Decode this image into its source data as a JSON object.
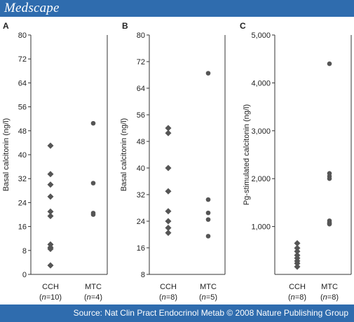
{
  "header": {
    "brand": "Medscape"
  },
  "footer": {
    "source": "Source: Nat Clin Pract Endocrinol Metab © 2008 Nature Publishing Group"
  },
  "colors": {
    "band": "#2f6cae",
    "marker": "#555555",
    "axis": "#333333"
  },
  "chart_data": [
    {
      "panel": "A",
      "type": "scatter",
      "ylabel": "Basal calcitonin (ng/l)",
      "ylim": [
        0,
        80
      ],
      "yticks": [
        0,
        8,
        16,
        24,
        32,
        40,
        48,
        56,
        64,
        72,
        80
      ],
      "yticks_labels": [
        "0",
        "8",
        "16",
        "24",
        "32",
        "40",
        "48",
        "56",
        "64",
        "72",
        "80"
      ],
      "categories": [
        {
          "name": "CCH",
          "n": "(n=10)",
          "n_prefix": "(",
          "n_italic": "n",
          "n_suffix": "=10)"
        },
        {
          "name": "MTC",
          "n": "(n=4)",
          "n_prefix": "(",
          "n_italic": "n",
          "n_suffix": "=4)"
        }
      ],
      "series": [
        {
          "name": "CCH",
          "marker": "diamond",
          "values": [
            43,
            33.5,
            30,
            26,
            21,
            19.5,
            10,
            9,
            8.5,
            3
          ]
        },
        {
          "name": "MTC",
          "marker": "circle",
          "values": [
            50.5,
            30.5,
            20.5,
            20
          ]
        }
      ]
    },
    {
      "panel": "B",
      "type": "scatter",
      "ylabel": "Basal calcitonin (ng/l)",
      "ylim": [
        8,
        80
      ],
      "yticks": [
        8,
        16,
        24,
        32,
        40,
        48,
        56,
        64,
        72,
        80
      ],
      "yticks_labels": [
        "8",
        "16",
        "24",
        "32",
        "40",
        "48",
        "56",
        "64",
        "72",
        "80"
      ],
      "categories": [
        {
          "name": "CCH",
          "n": "(n=8)",
          "n_prefix": "(",
          "n_italic": "n",
          "n_suffix": "=8)"
        },
        {
          "name": "MTC",
          "n": "(n=5)",
          "n_prefix": "(",
          "n_italic": "n",
          "n_suffix": "=5)"
        }
      ],
      "series": [
        {
          "name": "CCH",
          "marker": "diamond",
          "values": [
            52,
            50.5,
            40,
            33,
            27,
            24,
            22,
            20.5
          ]
        },
        {
          "name": "MTC",
          "marker": "circle",
          "values": [
            68.5,
            30.5,
            26.5,
            24.5,
            19.5
          ]
        }
      ]
    },
    {
      "panel": "C",
      "type": "scatter",
      "ylabel": "Pg-stimulated calcitonin (ng/l)",
      "ylim": [
        0,
        5000
      ],
      "yticks": [
        1000,
        2000,
        3000,
        4000,
        5000
      ],
      "yticks_labels": [
        "1,000",
        "2,000",
        "3,000",
        "4,000",
        "5,000"
      ],
      "categories": [
        {
          "name": "CCH",
          "n": "(n=8)",
          "n_prefix": "(",
          "n_italic": "n",
          "n_suffix": "=8)"
        },
        {
          "name": "MTC",
          "n": "(n=8)",
          "n_prefix": "(",
          "n_italic": "n",
          "n_suffix": "=8)"
        }
      ],
      "series": [
        {
          "name": "CCH",
          "marker": "diamond",
          "values": [
            650,
            550,
            480,
            400,
            340,
            280,
            230,
            160
          ]
        },
        {
          "name": "MTC",
          "marker": "circle",
          "values": [
            4400,
            2110,
            2050,
            2000,
            1120,
            1080,
            1060,
            1050
          ]
        }
      ]
    }
  ]
}
